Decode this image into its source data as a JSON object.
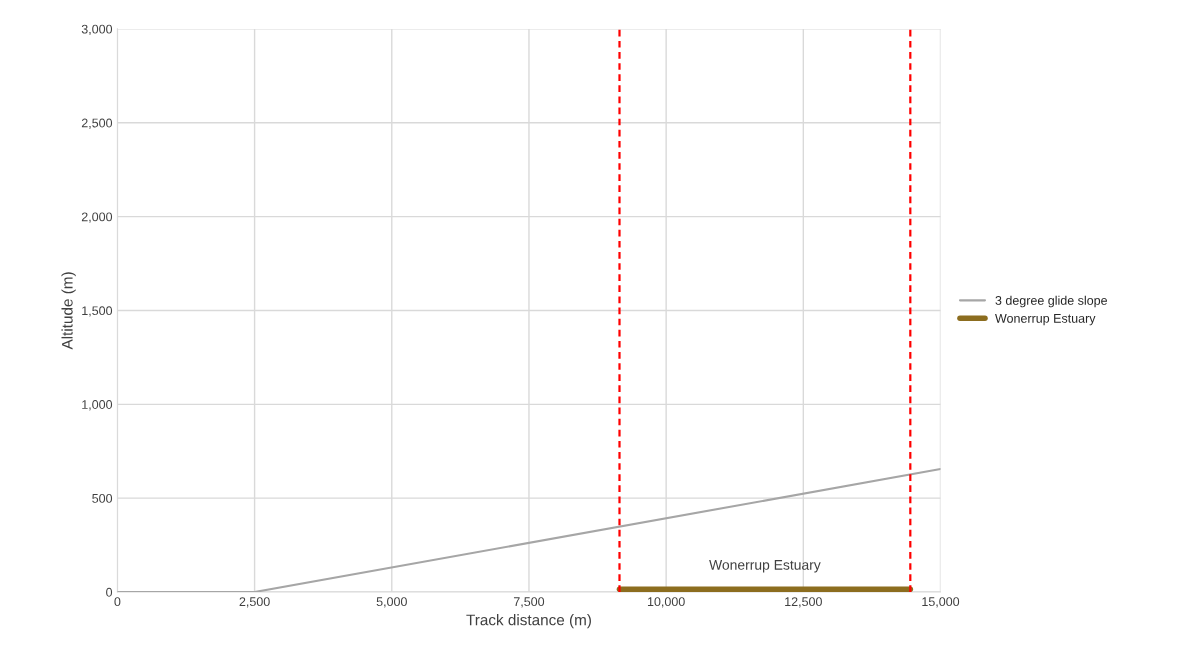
{
  "chart_data": {
    "type": "line",
    "xlabel": "Track distance (m)",
    "ylabel": "Altitude (m)",
    "series": [
      {
        "name": "3 degree glide slope",
        "color": "#a6a6a6",
        "x": [
          0,
          2500,
          15000
        ],
        "values": [
          0,
          0,
          655
        ]
      },
      {
        "name": "Wonerrup Estuary",
        "color": "#8c6d1f",
        "x": [
          9150,
          14450
        ],
        "values": [
          15,
          15
        ]
      }
    ],
    "xlim": [
      0,
      15000
    ],
    "xticks": [
      0,
      {
        "value": 2500,
        "label": "2,500"
      },
      {
        "value": 5000,
        "label": "5,000"
      },
      {
        "value": 7500,
        "label": "7,500"
      },
      {
        "value": 10000,
        "label": "10,000"
      },
      {
        "value": 12500,
        "label": "12,500"
      },
      {
        "value": 15000,
        "label": "15,000"
      }
    ],
    "ylim": [
      0,
      3000
    ],
    "yticks": [
      0,
      500,
      {
        "value": 1000,
        "label": "1,000"
      },
      {
        "value": 1500,
        "label": "1,500"
      },
      {
        "value": 2000,
        "label": "2,000"
      },
      {
        "value": 2500,
        "label": "2,500"
      },
      {
        "value": 3000,
        "label": "3,000"
      }
    ],
    "ref_lines": [
      {
        "axis": "x",
        "value": 9150,
        "color": "#ff0000",
        "line_style": "dashed"
      },
      {
        "axis": "x",
        "value": 14450,
        "color": "#ff0000",
        "line_style": "dashed"
      }
    ],
    "annotations": [
      {
        "text": "Wonerrup Estuary",
        "x": 11800,
        "y": 15
      }
    ],
    "grid": true,
    "legend": "right"
  }
}
